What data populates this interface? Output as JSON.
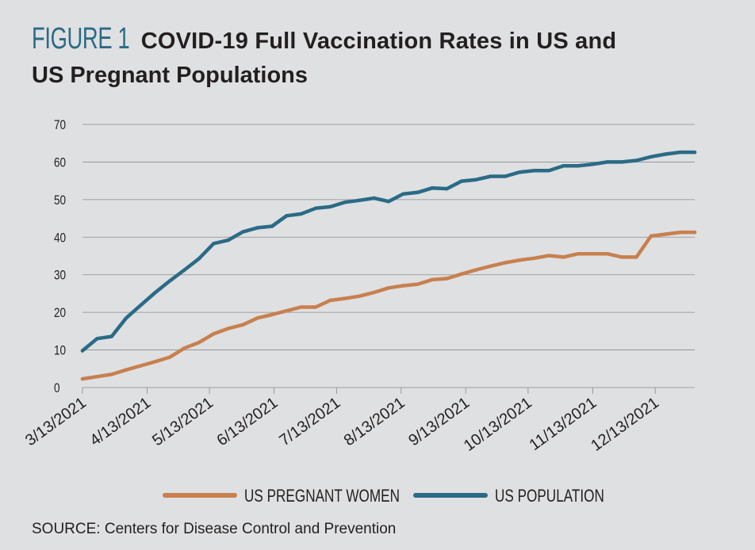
{
  "title": {
    "figure_label": "FIGURE 1",
    "line1": "COVID-19 Full Vaccination Rates in US and",
    "line2": "US Pregnant Populations"
  },
  "source": "SOURCE: Centers for Disease Control and Prevention",
  "colors": {
    "pregnant": "#c8804f",
    "population": "#2a6b87",
    "grid": "#8c8c8c",
    "background": "#dfe0e1"
  },
  "chart_data": {
    "type": "line",
    "title": "COVID-19 Full Vaccination Rates in US and US Pregnant Populations",
    "xlabel": "",
    "ylabel": "",
    "ylim": [
      0,
      70
    ],
    "yticks": [
      0,
      10,
      20,
      30,
      40,
      50,
      60,
      70
    ],
    "xlim": [
      0,
      43
    ],
    "xtick_labels": [
      {
        "label": "3/13/2021",
        "x": 0
      },
      {
        "label": "4/13/2021",
        "x": 4.43
      },
      {
        "label": "5/13/2021",
        "x": 8.71
      },
      {
        "label": "6/13/2021",
        "x": 13.14
      },
      {
        "label": "7/13/2021",
        "x": 17.43
      },
      {
        "label": "8/13/2021",
        "x": 21.86
      },
      {
        "label": "9/13/2021",
        "x": 26.29
      },
      {
        "label": "10/13/2021",
        "x": 30.57
      },
      {
        "label": "11/13/2021",
        "x": 35.0
      },
      {
        "label": "12/13/2021",
        "x": 39.29
      }
    ],
    "x_unit": "weeks since 3/13/2021",
    "grid": true,
    "legend_position": "bottom",
    "series": [
      {
        "name": "US PREGNANT WOMEN",
        "x": [
          0,
          1,
          2,
          3,
          4,
          5,
          6,
          7,
          8,
          9,
          10,
          11,
          12,
          13,
          14,
          15,
          16,
          17,
          18,
          19,
          20,
          21,
          22,
          23,
          24,
          25,
          26,
          27,
          28,
          29,
          30,
          31,
          32,
          33,
          34,
          35,
          36,
          37,
          38,
          39,
          40,
          41,
          42
        ],
        "values": [
          2.3,
          2.9,
          3.5,
          4.7,
          5.8,
          6.9,
          8.1,
          10.5,
          12.0,
          14.3,
          15.7,
          16.7,
          18.5,
          19.4,
          20.4,
          21.4,
          21.4,
          23.2,
          23.7,
          24.3,
          25.3,
          26.5,
          27.1,
          27.5,
          28.7,
          29.0,
          30.2,
          31.3,
          32.3,
          33.2,
          33.9,
          34.4,
          35.1,
          34.7,
          35.6,
          35.6,
          35.6,
          34.7,
          34.7,
          40.3,
          40.8,
          41.3,
          41.3
        ]
      },
      {
        "name": "US POPULATION",
        "x": [
          0,
          1,
          2,
          3,
          4,
          5,
          6,
          7,
          8,
          9,
          10,
          11,
          12,
          13,
          14,
          15,
          16,
          17,
          18,
          19,
          20,
          21,
          22,
          23,
          24,
          25,
          26,
          27,
          28,
          29,
          30,
          31,
          32,
          33,
          34,
          35,
          36,
          37,
          38,
          39,
          40,
          41,
          42
        ],
        "values": [
          9.8,
          13.0,
          13.6,
          18.5,
          21.9,
          25.3,
          28.4,
          31.3,
          34.3,
          38.3,
          39.2,
          41.4,
          42.5,
          42.9,
          45.7,
          46.2,
          47.7,
          48.1,
          49.3,
          49.8,
          50.4,
          49.5,
          51.5,
          51.9,
          53.1,
          52.9,
          54.9,
          55.3,
          56.2,
          56.2,
          57.3,
          57.7,
          57.7,
          59.0,
          59.0,
          59.4,
          60.0,
          60.0,
          60.4,
          61.4,
          62.1,
          62.6,
          62.6
        ]
      }
    ]
  }
}
